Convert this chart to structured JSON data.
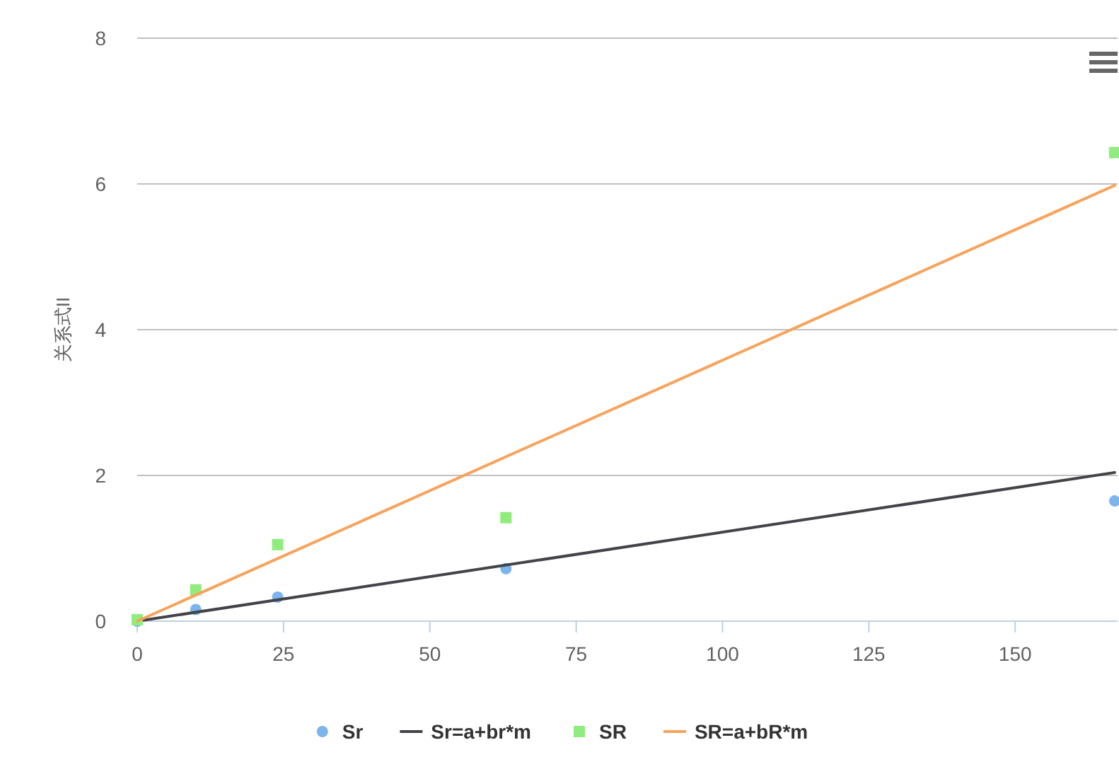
{
  "chart_data": {
    "type": "scatter",
    "ylabel": "关系式II",
    "xlim": [
      0,
      167.5
    ],
    "xticks": [
      0,
      25,
      50,
      75,
      100,
      125,
      150
    ],
    "ylim": [
      0,
      8
    ],
    "yticks": [
      0,
      2,
      4,
      6,
      8
    ],
    "grid": "y",
    "legend": "bottom",
    "series": [
      {
        "name": "Sr",
        "marker": "circle",
        "color": "#7cb5ec",
        "x": [
          0,
          10,
          24,
          63,
          167
        ],
        "values": [
          0,
          0.16,
          0.33,
          0.72,
          1.65
        ]
      },
      {
        "name": "Sr=a+br*m",
        "type": "line",
        "marker": "none",
        "color": "#434348",
        "x": [
          0,
          167
        ],
        "values": [
          0,
          2.04
        ]
      },
      {
        "name": "SR",
        "marker": "square",
        "color": "#90ed7d",
        "x": [
          0,
          10,
          24,
          63,
          167
        ],
        "values": [
          0.02,
          0.43,
          1.05,
          1.42,
          6.43
        ]
      },
      {
        "name": "SR=a+bR*m",
        "type": "line",
        "marker": "none",
        "color": "#f7a35c",
        "x": [
          0,
          167
        ],
        "values": [
          0,
          5.98
        ]
      }
    ]
  }
}
